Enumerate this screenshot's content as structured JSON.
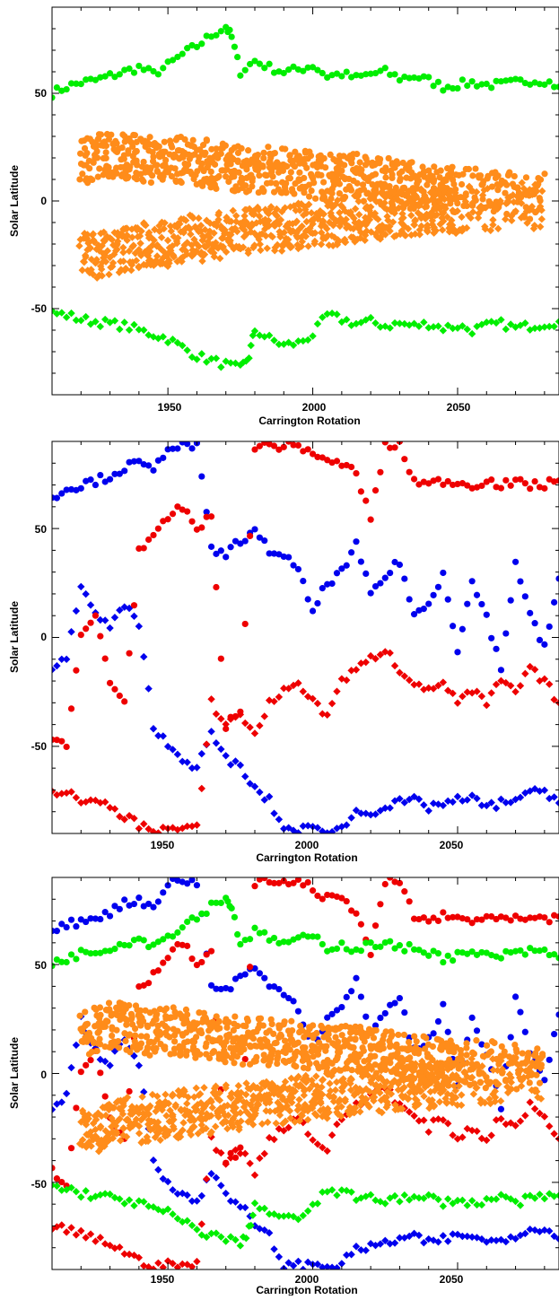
{
  "chart_data": [
    {
      "type": "scatter",
      "xlabel": "Carrington Rotation",
      "ylabel": "Solar Latitude",
      "xlim": [
        1910,
        2085
      ],
      "ylim": [
        -90,
        90
      ],
      "xticks": [
        1950,
        2000,
        2050
      ],
      "yticks": [
        -50,
        0,
        50
      ],
      "xtick_labels": [
        "1950",
        "2000",
        "2050"
      ],
      "ytick_labels": [
        "-50",
        "0",
        "50"
      ],
      "grid": false,
      "colors": {
        "green": "#00ee00",
        "orange": "#ff8c1a"
      },
      "series": [
        {
          "color": "green",
          "marker": "circle",
          "x": [
            1910,
            1915,
            1920,
            1925,
            1930,
            1935,
            1940,
            1945,
            1950,
            1955,
            1960,
            1965,
            1970,
            1972,
            1975,
            1980,
            1985,
            1990,
            1995,
            2000,
            2005,
            2010,
            2015,
            2020,
            2025,
            2030,
            2035,
            2040,
            2045,
            2050,
            2055,
            2060,
            2065,
            2070,
            2075,
            2080,
            2085
          ],
          "y": [
            50,
            53,
            55,
            56,
            58,
            60,
            62,
            59,
            63,
            68,
            72,
            77,
            81,
            76,
            60,
            65,
            62,
            60,
            61,
            63,
            58,
            59,
            57,
            59,
            60,
            57,
            58,
            56,
            53,
            54,
            55,
            54,
            54,
            55,
            56,
            56,
            53
          ]
        },
        {
          "color": "green",
          "marker": "diamond",
          "x": [
            1910,
            1915,
            1920,
            1925,
            1930,
            1935,
            1940,
            1945,
            1950,
            1955,
            1960,
            1965,
            1970,
            1975,
            1978,
            1980,
            1985,
            1990,
            1995,
            2000,
            2005,
            2010,
            2015,
            2020,
            2025,
            2030,
            2035,
            2040,
            2045,
            2050,
            2055,
            2060,
            2065,
            2070,
            2075,
            2080,
            2085
          ],
          "y": [
            -52,
            -53,
            -55,
            -56,
            -57,
            -58,
            -60,
            -62,
            -64,
            -68,
            -72,
            -74,
            -76,
            -78,
            -72,
            -60,
            -64,
            -67,
            -66,
            -62,
            -53,
            -55,
            -57,
            -56,
            -58,
            -57,
            -58,
            -57,
            -59,
            -58,
            -60,
            -58,
            -57,
            -59,
            -58,
            -57,
            -56
          ]
        },
        {
          "color": "orange",
          "marker": "circle",
          "x": [
            1920,
            1925,
            1930,
            1935,
            1940,
            1945,
            1950,
            1955,
            1960,
            1965,
            1970,
            1975,
            1980,
            1985,
            1990,
            1995,
            2000,
            2005,
            2010,
            2015,
            2020,
            2025,
            2030,
            2035,
            2040,
            2045,
            2050,
            2060,
            2070,
            2080
          ],
          "y": [
            18,
            20,
            22,
            21,
            20,
            19,
            20,
            19,
            18,
            17,
            16,
            15,
            14,
            15,
            14,
            13,
            12,
            11,
            12,
            11,
            10,
            9,
            8,
            7,
            6,
            5,
            5,
            4,
            3,
            2
          ]
        },
        {
          "color": "orange",
          "marker": "diamond",
          "x": [
            1920,
            1925,
            1930,
            1935,
            1940,
            1945,
            1950,
            1955,
            1960,
            1965,
            1970,
            1975,
            1980,
            1985,
            1990,
            1995,
            2000,
            2005,
            2010,
            2015,
            2020,
            2025,
            2030,
            2035,
            2040,
            2045,
            2050,
            2060,
            2070,
            2080
          ],
          "y": [
            -24,
            -25,
            -24,
            -22,
            -21,
            -20,
            -20,
            -18,
            -17,
            -17,
            -16,
            -15,
            -14,
            -13,
            -12,
            -12,
            -11,
            -10,
            -9,
            -8,
            -7,
            -7,
            -6,
            -5,
            -5,
            -4,
            -4,
            -3,
            -2,
            -2
          ]
        }
      ]
    },
    {
      "type": "scatter",
      "xlabel": "Carrington Rotation",
      "ylabel": "Solar Latitude",
      "xlim": [
        1910,
        2085
      ],
      "ylim": [
        -90,
        90
      ],
      "xticks": [
        1950,
        2000,
        2050
      ],
      "yticks": [
        -50,
        0,
        50
      ],
      "xtick_labels": [
        "1950",
        "2000",
        "2050"
      ],
      "ytick_labels": [
        "-50",
        "0",
        "50"
      ],
      "grid": false,
      "colors": {
        "blue": "#0000ee",
        "red": "#ee0000"
      },
      "series": [
        {
          "color": "blue",
          "marker": "circle",
          "x": [
            1910,
            1915,
            1920,
            1925,
            1930,
            1935,
            1940,
            1945,
            1950,
            1955,
            1960,
            1965,
            1970,
            1975,
            1980,
            1985,
            1990,
            1995,
            2000,
            2005,
            2010,
            2015,
            2020,
            2025,
            2030,
            2035,
            2040,
            2045,
            2050,
            2055,
            2060,
            2065,
            2070,
            2075,
            2080,
            2085
          ],
          "y": [
            65,
            68,
            70,
            72,
            74,
            78,
            80,
            76,
            88,
            88,
            88,
            40,
            38,
            45,
            48,
            40,
            38,
            30,
            12,
            25,
            30,
            42,
            20,
            28,
            35,
            10,
            15,
            30,
            -5,
            25,
            10,
            -15,
            35,
            10,
            -5,
            27
          ]
        },
        {
          "color": "blue",
          "marker": "diamond",
          "x": [
            1910,
            1915,
            1920,
            1925,
            1930,
            1935,
            1940,
            1945,
            1950,
            1955,
            1960,
            1965,
            1970,
            1975,
            1980,
            1985,
            1990,
            1995,
            2000,
            2005,
            2010,
            2015,
            2020,
            2025,
            2030,
            2035,
            2040,
            2045,
            2050,
            2055,
            2060,
            2065,
            2070,
            2075,
            2080,
            2085
          ],
          "y": [
            -15,
            -10,
            25,
            10,
            5,
            15,
            5,
            -40,
            -50,
            -55,
            -60,
            -45,
            -55,
            -60,
            -70,
            -75,
            -88,
            -88,
            -88,
            -88,
            -88,
            -80,
            -80,
            -78,
            -76,
            -75,
            -78,
            -76,
            -75,
            -74,
            -78,
            -76,
            -74,
            -72,
            -70,
            -76
          ]
        },
        {
          "color": "red",
          "marker": "circle",
          "x": [
            1910,
            1915,
            1920,
            1925,
            1930,
            1935,
            1940,
            1945,
            1950,
            1955,
            1960,
            1965,
            1970,
            1975,
            1980,
            1985,
            1990,
            1995,
            2000,
            2005,
            2010,
            2015,
            2020,
            2025,
            2030,
            2035,
            2040,
            2045,
            2050,
            2055,
            2060,
            2065,
            2070,
            2075,
            2080,
            2085
          ],
          "y": [
            -45,
            -50,
            0,
            10,
            -20,
            -30,
            40,
            45,
            55,
            60,
            50,
            55,
            -40,
            -35,
            88,
            88,
            88,
            88,
            85,
            80,
            80,
            75,
            55,
            88,
            88,
            72,
            70,
            72,
            71,
            70,
            72,
            70,
            71,
            70,
            70,
            72
          ]
        },
        {
          "color": "red",
          "marker": "diamond",
          "x": [
            1910,
            1915,
            1920,
            1925,
            1930,
            1935,
            1940,
            1945,
            1950,
            1955,
            1960,
            1965,
            1970,
            1975,
            1980,
            1985,
            1990,
            1995,
            2000,
            2005,
            2010,
            2015,
            2020,
            2025,
            2030,
            2035,
            2040,
            2045,
            2050,
            2055,
            2060,
            2065,
            2070,
            2075,
            2080,
            2085
          ],
          "y": [
            -70,
            -72,
            -74,
            -76,
            -78,
            -82,
            -86,
            -88,
            -88,
            -88,
            -88,
            -30,
            -40,
            -35,
            -45,
            -30,
            -25,
            -20,
            -30,
            -35,
            -20,
            -15,
            -10,
            -5,
            -15,
            -20,
            -25,
            -20,
            -30,
            -25,
            -30,
            -20,
            -25,
            -15,
            -20,
            -30
          ]
        }
      ]
    },
    {
      "type": "scatter",
      "xlabel": "Carrington Rotation",
      "ylabel": "Solar Latitude",
      "xlim": [
        1910,
        2085
      ],
      "ylim": [
        -90,
        90
      ],
      "xticks": [
        1950,
        2000,
        2050
      ],
      "yticks": [
        -50,
        0,
        50
      ],
      "xtick_labels": [
        "1950",
        "2000",
        "2050"
      ],
      "ytick_labels": [
        "-50",
        "0",
        "50"
      ],
      "grid": false,
      "series_sources": "overlay of the green, orange, blue and red series shown in the two panels above"
    }
  ]
}
